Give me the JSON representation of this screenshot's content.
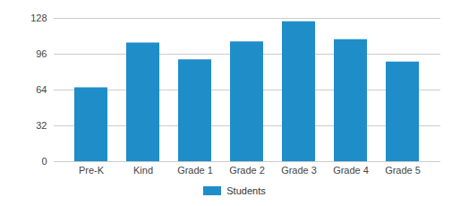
{
  "chart_data": {
    "type": "bar",
    "categories": [
      "Pre-K",
      "Kind",
      "Grade 1",
      "Grade 2",
      "Grade 3",
      "Grade 4",
      "Grade 5"
    ],
    "series": [
      {
        "name": "Students",
        "color": "#1f8dc8",
        "values": [
          66,
          106,
          91,
          107,
          125,
          109,
          89
        ]
      }
    ],
    "ylim": [
      0,
      128
    ],
    "yticks": [
      0,
      32,
      64,
      96,
      128
    ],
    "grid": true,
    "legend": "bottom"
  }
}
